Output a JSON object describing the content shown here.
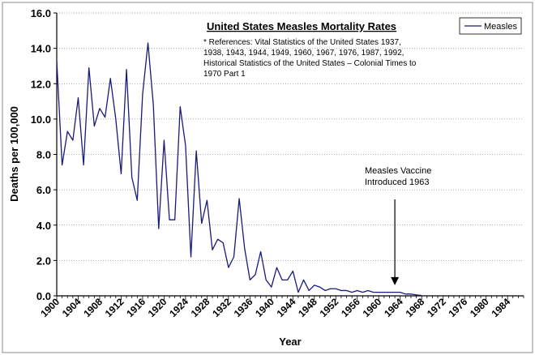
{
  "chart_data": {
    "type": "line",
    "title": "United States Measles Mortality Rates",
    "notes": [
      "* References: Vital Statistics of the United States 1937,",
      "1938, 1943, 1944, 1949, 1960, 1967, 1976, 1987, 1992,",
      "Historical Statistics of the United States – Colonial Times to",
      "1970 Part 1"
    ],
    "xlabel": "Year",
    "ylabel": "Deaths per 100,000",
    "xlim": [
      1900,
      1987
    ],
    "ylim": [
      0,
      16
    ],
    "y_ticks": [
      "0.0",
      "2.0",
      "4.0",
      "6.0",
      "8.0",
      "10.0",
      "12.0",
      "14.0",
      "16.0"
    ],
    "x_ticks": [
      "1900",
      "1904",
      "1908",
      "1912",
      "1916",
      "1920",
      "1924",
      "1928",
      "1932",
      "1936",
      "1940",
      "1944",
      "1948",
      "1952",
      "1956",
      "1960",
      "1964",
      "1968",
      "1972",
      "1976",
      "1980",
      "1984"
    ],
    "grid": "horizontal",
    "legend": "top-right",
    "series": [
      {
        "name": "Measles",
        "color": "#1a1a7a",
        "x": [
          1900,
          1901,
          1902,
          1903,
          1904,
          1905,
          1906,
          1907,
          1908,
          1909,
          1910,
          1911,
          1912,
          1913,
          1914,
          1915,
          1916,
          1917,
          1918,
          1919,
          1920,
          1921,
          1922,
          1923,
          1924,
          1925,
          1926,
          1927,
          1928,
          1929,
          1930,
          1931,
          1932,
          1933,
          1934,
          1935,
          1936,
          1937,
          1938,
          1939,
          1940,
          1941,
          1942,
          1943,
          1944,
          1945,
          1946,
          1947,
          1948,
          1949,
          1950,
          1951,
          1952,
          1953,
          1954,
          1955,
          1956,
          1957,
          1958,
          1959,
          1960,
          1961,
          1962,
          1963,
          1964,
          1965,
          1966,
          1967,
          1968
        ],
        "y": [
          13.3,
          7.4,
          9.3,
          8.8,
          11.2,
          7.4,
          12.9,
          9.6,
          10.6,
          10.1,
          12.3,
          10.0,
          6.9,
          12.8,
          6.7,
          5.4,
          11.4,
          14.3,
          10.8,
          3.8,
          8.8,
          4.3,
          4.3,
          10.7,
          8.5,
          2.2,
          8.2,
          4.1,
          5.4,
          2.6,
          3.2,
          3.0,
          1.6,
          2.2,
          5.5,
          2.7,
          0.9,
          1.2,
          2.5,
          0.9,
          0.5,
          1.6,
          0.9,
          0.9,
          1.4,
          0.2,
          0.9,
          0.3,
          0.6,
          0.5,
          0.3,
          0.4,
          0.4,
          0.3,
          0.3,
          0.2,
          0.3,
          0.2,
          0.3,
          0.2,
          0.2,
          0.2,
          0.2,
          0.2,
          0.2,
          0.1,
          0.1,
          0.05,
          0.02
        ]
      }
    ],
    "annotation": {
      "lines": [
        "Measles Vaccine",
        "Introduced 1963"
      ],
      "x": 1963,
      "arrow_tip_y": 0.6
    }
  }
}
